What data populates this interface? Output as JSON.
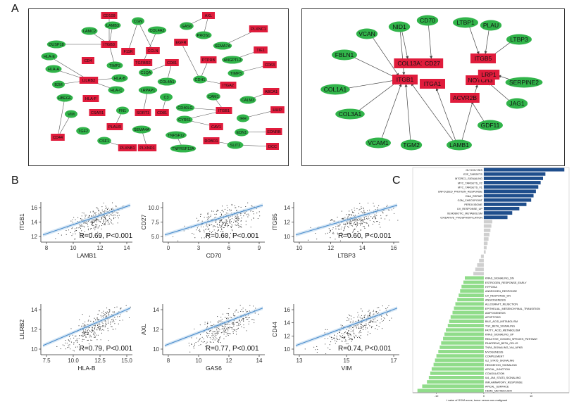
{
  "panels": {
    "a": "A",
    "b": "B",
    "c": "C"
  },
  "colors": {
    "green": "#31b44a",
    "red": "#e01c3c",
    "dark_blue": "#1f4e8c",
    "light_gray": "#cfcfcf",
    "light_green": "#90dc8a",
    "reg_line": "#4a8ccb",
    "band": "#b9d6ee",
    "points": "#222222"
  },
  "network_left": {
    "nodes": [
      {
        "id": "CD109",
        "label": "CD109",
        "type": "red"
      },
      {
        "id": "LAMC2",
        "label": "LAMC2",
        "type": "green"
      },
      {
        "id": "LAMB3",
        "label": "LAMB3",
        "type": "green"
      },
      {
        "id": "CGN",
        "label": "CGN",
        "type": "green"
      },
      {
        "id": "GAS6",
        "label": "GAS6",
        "type": "green"
      },
      {
        "id": "AXL",
        "label": "AXL",
        "type": "red"
      },
      {
        "id": "PLXNC1",
        "label": "PLXNC1",
        "type": "red"
      },
      {
        "id": "DUSP18",
        "label": "DUSP18",
        "type": "green"
      },
      {
        "id": "ITGB3",
        "label": "ITGB3",
        "type": "red"
      },
      {
        "id": "COL4A2",
        "label": "COL4A2",
        "type": "green"
      },
      {
        "id": "PROS1",
        "label": "PROS1",
        "type": "green"
      },
      {
        "id": "SEMA7A",
        "label": "SEMA7A",
        "type": "green"
      },
      {
        "id": "HLA-E",
        "label": "HLA-E",
        "type": "green"
      },
      {
        "id": "F11R",
        "label": "F11R",
        "type": "red"
      },
      {
        "id": "CCLN",
        "label": "CCLN",
        "type": "red"
      },
      {
        "id": "EGFR",
        "label": "EGFR",
        "type": "red"
      },
      {
        "id": "TIE1",
        "label": "TIE1",
        "type": "red"
      },
      {
        "id": "CD4",
        "label": "CD4",
        "type": "red"
      },
      {
        "id": "TIMP2",
        "label": "TIMP2",
        "type": "green"
      },
      {
        "id": "TGFBR2",
        "label": "TGFBR2",
        "type": "red"
      },
      {
        "id": "CD81",
        "label": "CD81",
        "type": "red"
      },
      {
        "id": "PTPRB",
        "label": "PTPRB",
        "type": "red"
      },
      {
        "id": "ANGPTL2",
        "label": "ANGPTL2",
        "type": "green"
      },
      {
        "id": "CD63",
        "label": "CD63",
        "type": "red"
      },
      {
        "id": "HLA-A",
        "label": "HLA-A",
        "type": "green"
      },
      {
        "id": "C1QA",
        "label": "C1QA",
        "type": "green"
      },
      {
        "id": "B2M",
        "label": "B2M",
        "type": "green"
      },
      {
        "id": "LILRB2",
        "label": "LILRB2",
        "type": "red"
      },
      {
        "id": "HLA-B",
        "label": "HLA-B",
        "type": "green"
      },
      {
        "id": "TIMP3",
        "label": "TIMP3",
        "type": "green"
      },
      {
        "id": "LRPAP1",
        "label": "LRPAP1",
        "type": "green"
      },
      {
        "id": "COL4A1",
        "label": "COL4A1",
        "type": "green"
      },
      {
        "id": "CDH1",
        "label": "CDH1",
        "type": "green"
      },
      {
        "id": "ITGA2",
        "label": "ITGA2",
        "type": "red"
      },
      {
        "id": "ABCA1",
        "label": "ABCA1",
        "type": "red"
      },
      {
        "id": "HLA-C",
        "label": "HLA-C",
        "type": "green"
      },
      {
        "id": "HBEGF",
        "label": "HBEGF",
        "type": "green"
      },
      {
        "id": "HLA-F",
        "label": "HLA-F",
        "type": "red"
      },
      {
        "id": "C3",
        "label": "C3",
        "type": "green"
      },
      {
        "id": "CAM1",
        "label": "CAM1",
        "type": "green"
      },
      {
        "id": "CALM3",
        "label": "CALM3",
        "type": "green"
      },
      {
        "id": "VIM",
        "label": "VIM",
        "type": "green"
      },
      {
        "id": "CSAR1",
        "label": "CSAR1",
        "type": "red"
      },
      {
        "id": "FN1",
        "label": "FN1",
        "type": "green"
      },
      {
        "id": "SORT1",
        "label": "SORT1",
        "type": "red"
      },
      {
        "id": "CD81b",
        "label": "CD81",
        "type": "red"
      },
      {
        "id": "CD40LG",
        "label": "CD40LG",
        "type": "green"
      },
      {
        "id": "ITGB1",
        "label": "ITGB1",
        "type": "red"
      },
      {
        "id": "IHH",
        "label": "IHH",
        "type": "green"
      },
      {
        "id": "HHIP",
        "label": "HHIP",
        "type": "red"
      },
      {
        "id": "TGF2",
        "label": "TGF2",
        "type": "green"
      },
      {
        "id": "PLAUR",
        "label": "PLAUR",
        "type": "red"
      },
      {
        "id": "CYR61",
        "label": "CYR61",
        "type": "green"
      },
      {
        "id": "CAV1",
        "label": "CAV1",
        "type": "red"
      },
      {
        "id": "CD44",
        "label": "CD44",
        "type": "red"
      },
      {
        "id": "SEMA4A",
        "label": "SEMA4A",
        "type": "green"
      },
      {
        "id": "EDN1",
        "label": "EDN1",
        "type": "green"
      },
      {
        "id": "EDNRB",
        "label": "EDNRB",
        "type": "red"
      },
      {
        "id": "CSF1",
        "label": "CSF1",
        "type": "green"
      },
      {
        "id": "PLXND1",
        "label": "PLXND1",
        "type": "red"
      },
      {
        "id": "TNFSF12",
        "label": "TNFSF12",
        "type": "green"
      },
      {
        "id": "ROBO1",
        "label": "ROBO1",
        "type": "red"
      },
      {
        "id": "SLIT2",
        "label": "SLIT2",
        "type": "green"
      },
      {
        "id": "DCC",
        "label": "DCC",
        "type": "red"
      },
      {
        "id": "PLXNB1",
        "label": "PLXNB1",
        "type": "red"
      },
      {
        "id": "TNFRSF12A",
        "label": "TNFRSF12A",
        "type": "green"
      }
    ]
  },
  "network_right": {
    "nodes": [
      {
        "id": "VCAN",
        "label": "VCAN",
        "type": "green"
      },
      {
        "id": "NID1",
        "label": "NID1",
        "type": "green"
      },
      {
        "id": "CD70",
        "label": "CD70",
        "type": "green"
      },
      {
        "id": "LTBP1",
        "label": "LTBP1",
        "type": "green"
      },
      {
        "id": "PLAU",
        "label": "PLAU",
        "type": "green"
      },
      {
        "id": "LTBP3",
        "label": "LTBP3",
        "type": "green"
      },
      {
        "id": "FBLN1",
        "label": "FBLN1",
        "type": "green"
      },
      {
        "id": "COL13A1",
        "label": "COL13A1",
        "type": "red"
      },
      {
        "id": "CD27",
        "label": "CD27",
        "type": "red"
      },
      {
        "id": "ITGB5",
        "label": "ITGB5",
        "type": "red"
      },
      {
        "id": "ITGB1",
        "label": "ITGB1",
        "type": "red"
      },
      {
        "id": "NOTCH3",
        "label": "NOTCH3",
        "type": "red"
      },
      {
        "id": "LRP1",
        "label": "LRP1",
        "type": "red"
      },
      {
        "id": "SERPINE2",
        "label": "SERPINE2",
        "type": "green"
      },
      {
        "id": "COL1A1",
        "label": "COL1A1",
        "type": "green"
      },
      {
        "id": "ITGA1",
        "label": "ITGA1",
        "type": "red"
      },
      {
        "id": "ACVR2B",
        "label": "ACVR2B",
        "type": "red"
      },
      {
        "id": "JAG1",
        "label": "JAG1",
        "type": "green"
      },
      {
        "id": "COL3A1",
        "label": "COL3A1",
        "type": "green"
      },
      {
        "id": "GDF11",
        "label": "GDF11",
        "type": "green"
      },
      {
        "id": "VCAM1",
        "label": "VCAM1",
        "type": "green"
      },
      {
        "id": "TGM2",
        "label": "TGM2",
        "type": "green"
      },
      {
        "id": "LAMB1",
        "label": "LAMB1",
        "type": "green"
      }
    ],
    "edges": [
      [
        "VCAN",
        "ITGB1"
      ],
      [
        "NID1",
        "ITGB1"
      ],
      [
        "FBLN1",
        "ITGB1"
      ],
      [
        "COL1A1",
        "ITGB1"
      ],
      [
        "COL3A1",
        "ITGB1"
      ],
      [
        "VCAM1",
        "ITGB1"
      ],
      [
        "TGM2",
        "ITGB1"
      ],
      [
        "LAMB1",
        "ITGB1"
      ],
      [
        "LAMB1",
        "ITGA1"
      ],
      [
        "NID1",
        "COL13A1"
      ],
      [
        "CD70",
        "CD27"
      ],
      [
        "LTBP1",
        "ITGB5"
      ],
      [
        "PLAU",
        "ITGB5"
      ],
      [
        "LTBP3",
        "ITGB5"
      ],
      [
        "SERPINE2",
        "LRP1"
      ],
      [
        "JAG1",
        "NOTCH3"
      ],
      [
        "GDF11",
        "ACVR2B"
      ],
      [
        "LAMB1",
        "NOTCH3"
      ]
    ]
  },
  "scatter_plots": [
    {
      "ylabel": "ITGB1",
      "xlabel": "LAMB1",
      "stat": "R=0.69,  P<0.001",
      "xticks": [
        "8",
        "10",
        "12",
        "14"
      ],
      "yticks": [
        "12",
        "14",
        "16"
      ]
    },
    {
      "ylabel": "CD27",
      "xlabel": "CD70",
      "stat": "R=0.60,  P<0.001",
      "xticks": [
        "0",
        "3",
        "6",
        "9"
      ],
      "yticks": [
        "5.0",
        "7.5",
        "10.0"
      ]
    },
    {
      "ylabel": "ITGB5",
      "xlabel": "LTBP3",
      "stat": "R=0.60,  P<0.001",
      "xticks": [
        "10",
        "12",
        "14",
        "16"
      ],
      "yticks": [
        "10",
        "12",
        "14"
      ]
    },
    {
      "ylabel": "LILRB2",
      "xlabel": "HLA-B",
      "stat": "R=0.79,  P<0.001",
      "xticks": [
        "7.5",
        "10.0",
        "12.5",
        "15.0"
      ],
      "yticks": [
        "10",
        "12",
        "14"
      ]
    },
    {
      "ylabel": "AXL",
      "xlabel": "GAS6",
      "stat": "R=0.77,  P<0.001",
      "xticks": [
        "8",
        "10",
        "12",
        "14"
      ],
      "yticks": [
        "10",
        "12",
        "14"
      ]
    },
    {
      "ylabel": "CD44",
      "xlabel": "VIM",
      "stat": "R=0.74,  P<0.001",
      "xticks": [
        "13",
        "15",
        "17"
      ],
      "yticks": [
        "10",
        "12",
        "14",
        "16"
      ]
    }
  ],
  "chart_data": {
    "type": "bar",
    "orientation": "horizontal",
    "title": "",
    "xlabel": "t value of GSVA score, tumor versus non-malignant",
    "xticks": [
      "-10",
      "0",
      "10"
    ],
    "categories": [
      "GLYCOLYSIS",
      "E2F_TARGETS",
      "MTORC1_SIGNALING",
      "MYC_TARGETS_V2",
      "MYC_TARGETS_V1",
      "UNFOLDED_PROTEIN_RESPONSE",
      "DNA_REPAIR",
      "G2M_CHECKPOINT",
      "PEROXISOME",
      "UV_RESPONSE_UP",
      "XENOBIOTIC_METABOLISM",
      "OXIDATIVE_PHOSPHORYLATION",
      "",
      "",
      "",
      "",
      "",
      "",
      "",
      "",
      "",
      "",
      "",
      "",
      "",
      "KRAS_SIGNALING_DN",
      "ESTROGEN_RESPONSE_EARLY",
      "HYPOXIA",
      "ANDROGEN_RESPONSE",
      "UV_RESPONSE_DN",
      "ANGIOGENESIS",
      "ALLOGRAFT_REJECTION",
      "EPITHELIAL_MESENCHYMAL_TRANSITION",
      "ADIPOGENESIS",
      "APOPTOSIS",
      "BILE_ACID_METABOLISM",
      "TGF_BETA_SIGNALING",
      "FATTY_ACID_METABOLISM",
      "KRAS_SIGNALING_UP",
      "REACTIVE_OXIGEN_SPECIES_PATHWAY",
      "PANCREAS_BETA_CELLS",
      "TNFA_SIGNALING_VIA_NFKB",
      "MYOGENESIS",
      "COMPLEMENT",
      "IL2_STAT5_SIGNALING",
      "HEDGEHOG_SIGNALING",
      "APICAL_JUNCTION",
      "COAGULATION",
      "IL6_JAK_STAT3_SIGNALING",
      "INFLAMMATORY_RESPONSE",
      "APICAL_SURFACE",
      "HEME_METABOLISM"
    ],
    "values": [
      17,
      13,
      12.5,
      12,
      11.5,
      11,
      10.5,
      10,
      9,
      7.5,
      6,
      5,
      1.8,
      1.6,
      1.4,
      1.2,
      1.0,
      0.8,
      0.6,
      0.4,
      -0.6,
      -1.0,
      -1.4,
      -1.8,
      -2.2,
      -4,
      -4.3,
      -4.7,
      -5,
      -5.3,
      -5.6,
      -6,
      -6.3,
      -6.6,
      -7,
      -7.3,
      -7.6,
      -8,
      -8.3,
      -8.6,
      -9,
      -9.3,
      -9.6,
      -10,
      -10.3,
      -10.6,
      -11,
      -11.3,
      -11.6,
      -12,
      -13,
      -14
    ],
    "xlim": [
      -15,
      18
    ]
  }
}
